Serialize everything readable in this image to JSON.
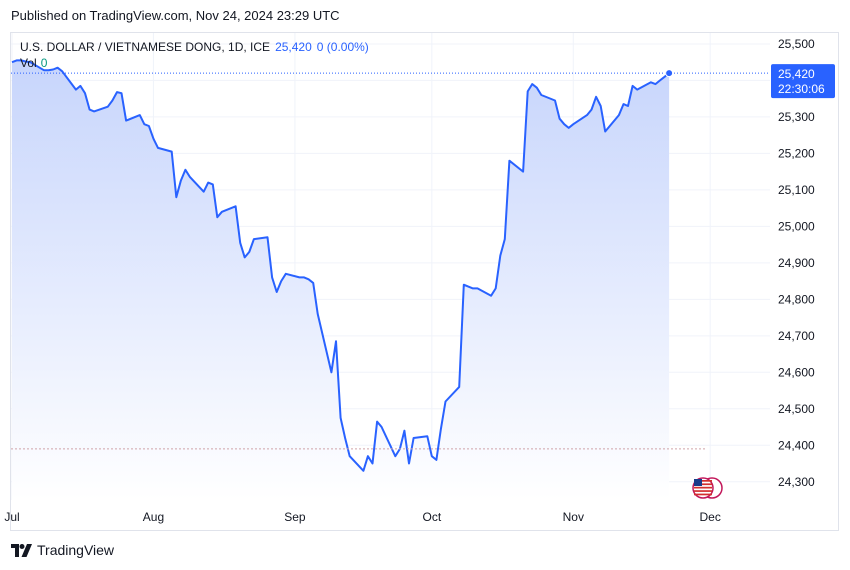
{
  "header": {
    "published": "Published on TradingView.com, Nov 24, 2024 23:29 UTC"
  },
  "legend": {
    "symbol": "U.S. DOLLAR / VIETNAMESE DONG, 1D, ICE",
    "last": "25,420",
    "change": "0 (0.00%)",
    "vol_label": "Vol",
    "vol_value": "0"
  },
  "price_badge": {
    "price": "25,420",
    "countdown": "22:30:06"
  },
  "footer": {
    "brand": "TradingView"
  },
  "colors": {
    "line": "#2962ff",
    "fill_top": "#c7d5fc",
    "accent": "#2962ff",
    "vol": "#089981"
  },
  "chart_data": {
    "type": "area",
    "title": "U.S. DOLLAR / VIETNAMESE DONG, 1D, ICE",
    "x_ticks": [
      "Jul",
      "Aug",
      "Sep",
      "Oct",
      "Nov",
      "Dec"
    ],
    "y_ticks": [
      "25,500",
      "25,400",
      "25,300",
      "25,200",
      "25,100",
      "25,000",
      "24,900",
      "24,800",
      "24,700",
      "24,600",
      "24,500",
      "24,400",
      "24,300"
    ],
    "ylim": [
      24250,
      25530
    ],
    "xlim": [
      "2024-07-01",
      "2024-12-06"
    ],
    "last_value": 25420,
    "reference_line": 24390,
    "series": [
      {
        "x": [
          "2024-07-01",
          "2024-07-02",
          "2024-07-03",
          "2024-07-04",
          "2024-07-05",
          "2024-07-08",
          "2024-07-09",
          "2024-07-10",
          "2024-07-11",
          "2024-07-12",
          "2024-07-15",
          "2024-07-16",
          "2024-07-17",
          "2024-07-18",
          "2024-07-19",
          "2024-07-22",
          "2024-07-23",
          "2024-07-24",
          "2024-07-25",
          "2024-07-26",
          "2024-07-29",
          "2024-07-30",
          "2024-07-31",
          "2024-08-01",
          "2024-08-02",
          "2024-08-05",
          "2024-08-06",
          "2024-08-07",
          "2024-08-08",
          "2024-08-09",
          "2024-08-12",
          "2024-08-13",
          "2024-08-14",
          "2024-08-15",
          "2024-08-16",
          "2024-08-19",
          "2024-08-20",
          "2024-08-21",
          "2024-08-22",
          "2024-08-23",
          "2024-08-26",
          "2024-08-27",
          "2024-08-28",
          "2024-08-29",
          "2024-08-30",
          "2024-09-02",
          "2024-09-03",
          "2024-09-04",
          "2024-09-05",
          "2024-09-06",
          "2024-09-09",
          "2024-09-10",
          "2024-09-11",
          "2024-09-12",
          "2024-09-13",
          "2024-09-16",
          "2024-09-17",
          "2024-09-18",
          "2024-09-19",
          "2024-09-20",
          "2024-09-23",
          "2024-09-24",
          "2024-09-25",
          "2024-09-26",
          "2024-09-27",
          "2024-09-30",
          "2024-10-01",
          "2024-10-02",
          "2024-10-03",
          "2024-10-04",
          "2024-10-07",
          "2024-10-08",
          "2024-10-09",
          "2024-10-10",
          "2024-10-11",
          "2024-10-14",
          "2024-10-15",
          "2024-10-16",
          "2024-10-17",
          "2024-10-18",
          "2024-10-21",
          "2024-10-22",
          "2024-10-23",
          "2024-10-24",
          "2024-10-25",
          "2024-10-28",
          "2024-10-29",
          "2024-10-30",
          "2024-10-31",
          "2024-11-01",
          "2024-11-04",
          "2024-11-05",
          "2024-11-06",
          "2024-11-07",
          "2024-11-08",
          "2024-11-11",
          "2024-11-12",
          "2024-11-13",
          "2024-11-14",
          "2024-11-15",
          "2024-11-18",
          "2024-11-19",
          "2024-11-20",
          "2024-11-21",
          "2024-11-22"
        ],
        "values": [
          25450,
          25455,
          25455,
          25452,
          25450,
          25428,
          25428,
          25430,
          25435,
          25425,
          25375,
          25385,
          25365,
          25320,
          25315,
          25328,
          25345,
          25368,
          25365,
          25290,
          25305,
          25280,
          25275,
          25240,
          25215,
          25205,
          25080,
          25125,
          25155,
          25135,
          25095,
          25120,
          25115,
          25025,
          25040,
          25055,
          24955,
          24915,
          24930,
          24965,
          24970,
          24860,
          24820,
          24850,
          24870,
          24860,
          24860,
          24855,
          24845,
          24760,
          24600,
          24685,
          24475,
          24420,
          24370,
          24330,
          24370,
          24350,
          24465,
          24450,
          24370,
          24390,
          24440,
          24350,
          24420,
          24425,
          24370,
          24360,
          24445,
          24520,
          24560,
          24840,
          24835,
          24830,
          24830,
          24810,
          24830,
          24920,
          24965,
          25180,
          25150,
          25370,
          25390,
          25380,
          25360,
          25345,
          25295,
          25280,
          25270,
          25280,
          25305,
          25320,
          25355,
          25330,
          25260,
          25305,
          25335,
          25330,
          25385,
          25375,
          25395,
          25390,
          25400,
          25410,
          25420
        ]
      }
    ]
  }
}
